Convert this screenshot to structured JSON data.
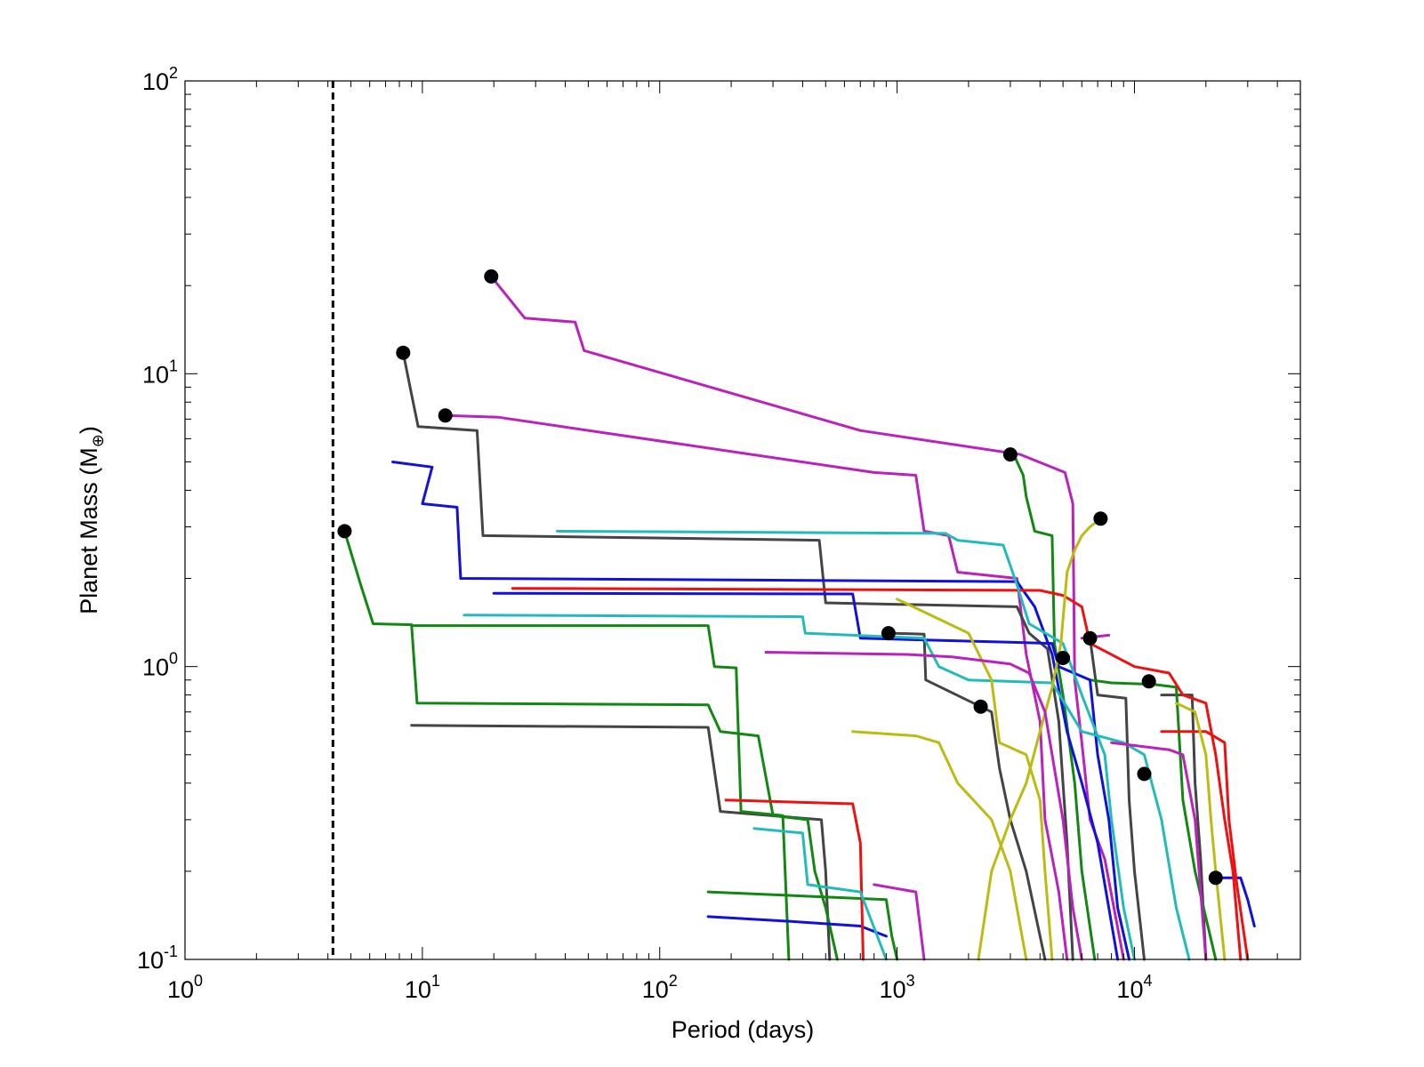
{
  "chart_data": {
    "type": "line",
    "xlabel": "Period (days)",
    "ylabel_main": "Planet Mass (M",
    "ylabel_sub": "⊕",
    "ylabel_close": ")",
    "xscale": "log",
    "yscale": "log",
    "xlim": [
      1,
      50000
    ],
    "ylim": [
      0.1,
      100
    ],
    "x_tick_labels": [
      {
        "value": 1,
        "base": "10",
        "exp": "0"
      },
      {
        "value": 10,
        "base": "10",
        "exp": "1"
      },
      {
        "value": 100,
        "base": "10",
        "exp": "2"
      },
      {
        "value": 1000,
        "base": "10",
        "exp": "3"
      },
      {
        "value": 10000,
        "base": "10",
        "exp": "4"
      }
    ],
    "y_tick_labels": [
      {
        "value": 0.1,
        "base": "10",
        "exp": "-1"
      },
      {
        "value": 1,
        "base": "10",
        "exp": "0"
      },
      {
        "value": 10,
        "base": "10",
        "exp": "1"
      },
      {
        "value": 100,
        "base": "10",
        "exp": "2"
      }
    ],
    "grid": false,
    "reference_line": {
      "x": 4.2,
      "style": "dashed",
      "color": "#000000"
    },
    "marker_color": "#000000",
    "series": [
      {
        "name": "magenta-1",
        "color": "#bb22bb",
        "points": [
          [
            19.5,
            21.5
          ],
          [
            27,
            15.5
          ],
          [
            44,
            15
          ],
          [
            48,
            12
          ],
          [
            700,
            6.4
          ],
          [
            3300,
            5.3
          ],
          [
            5100,
            4.6
          ],
          [
            5500,
            3.6
          ],
          [
            5600,
            0.9
          ],
          [
            6000,
            0.55
          ],
          [
            6500,
            0.3
          ],
          [
            7500,
            0.22
          ],
          [
            9000,
            0.1
          ]
        ]
      },
      {
        "name": "magenta-2",
        "color": "#bb22bb",
        "points": [
          [
            12.5,
            7.2
          ],
          [
            21,
            7.1
          ],
          [
            800,
            4.6
          ],
          [
            1200,
            4.5
          ],
          [
            1300,
            2.9
          ],
          [
            1650,
            2.8
          ],
          [
            1800,
            2.1
          ],
          [
            3200,
            2.0
          ],
          [
            3500,
            1.1
          ],
          [
            4000,
            0.65
          ],
          [
            4200,
            0.3
          ],
          [
            4800,
            0.17
          ],
          [
            5200,
            0.1
          ]
        ]
      },
      {
        "name": "darkgray-1",
        "color": "#444444",
        "points": [
          [
            8.3,
            11.8
          ],
          [
            9,
            8.5
          ],
          [
            9.6,
            6.6
          ],
          [
            17,
            6.4
          ],
          [
            18,
            2.8
          ],
          [
            470,
            2.7
          ],
          [
            500,
            1.65
          ],
          [
            3200,
            1.6
          ],
          [
            3600,
            1.3
          ],
          [
            4300,
            1.15
          ],
          [
            4800,
            0.65
          ],
          [
            5000,
            0.4
          ],
          [
            5200,
            0.25
          ],
          [
            5500,
            0.1
          ]
        ]
      },
      {
        "name": "darkgray-2",
        "color": "#444444",
        "points": [
          [
            9,
            0.63
          ],
          [
            160,
            0.62
          ],
          [
            180,
            0.32
          ],
          [
            480,
            0.3
          ],
          [
            500,
            0.2
          ],
          [
            520,
            0.1
          ]
        ]
      },
      {
        "name": "darkgray-3",
        "color": "#444444",
        "points": [
          [
            930,
            1.3
          ],
          [
            1300,
            1.29
          ],
          [
            1320,
            0.9
          ],
          [
            2500,
            0.7
          ],
          [
            2700,
            0.45
          ],
          [
            3000,
            0.3
          ],
          [
            3500,
            0.2
          ],
          [
            4200,
            0.1
          ]
        ]
      },
      {
        "name": "darkgray-4",
        "color": "#444444",
        "points": [
          [
            6500,
            1.25
          ],
          [
            7000,
            0.8
          ],
          [
            9200,
            0.78
          ],
          [
            9500,
            0.35
          ],
          [
            10000,
            0.2
          ],
          [
            11000,
            0.1
          ]
        ]
      },
      {
        "name": "darkgray-5",
        "color": "#444444",
        "points": [
          [
            13000,
            0.8
          ],
          [
            17500,
            0.8
          ],
          [
            18000,
            0.4
          ],
          [
            19000,
            0.22
          ],
          [
            20000,
            0.1
          ]
        ]
      },
      {
        "name": "green-1",
        "color": "#118811",
        "points": [
          [
            4.7,
            2.9
          ],
          [
            5.5,
            1.9
          ],
          [
            6.2,
            1.4
          ],
          [
            9,
            1.39
          ],
          [
            9.5,
            0.75
          ],
          [
            160,
            0.74
          ],
          [
            180,
            0.6
          ],
          [
            260,
            0.58
          ],
          [
            300,
            0.31
          ],
          [
            420,
            0.3
          ],
          [
            450,
            0.2
          ],
          [
            500,
            0.15
          ],
          [
            560,
            0.1
          ]
        ]
      },
      {
        "name": "green-2",
        "color": "#118811",
        "points": [
          [
            9.2,
            1.38
          ],
          [
            160,
            1.38
          ],
          [
            170,
            1.0
          ],
          [
            210,
            0.99
          ],
          [
            220,
            0.32
          ],
          [
            330,
            0.31
          ],
          [
            350,
            0.1
          ]
        ]
      },
      {
        "name": "green-3",
        "color": "#118811",
        "points": [
          [
            3100,
            5.3
          ],
          [
            3400,
            4.5
          ],
          [
            3500,
            3.8
          ],
          [
            3800,
            2.9
          ],
          [
            4500,
            2.8
          ],
          [
            4600,
            1.2
          ],
          [
            5000,
            0.8
          ],
          [
            5600,
            0.4
          ],
          [
            6000,
            0.2
          ],
          [
            6800,
            0.1
          ]
        ]
      },
      {
        "name": "green-4",
        "color": "#118811",
        "points": [
          [
            6500,
            0.9
          ],
          [
            8000,
            0.88
          ],
          [
            12000,
            0.87
          ],
          [
            15000,
            0.85
          ],
          [
            16000,
            0.35
          ],
          [
            18000,
            0.2
          ],
          [
            22000,
            0.1
          ]
        ]
      },
      {
        "name": "green-5",
        "color": "#118811",
        "points": [
          [
            160,
            0.17
          ],
          [
            900,
            0.16
          ],
          [
            950,
            0.12
          ],
          [
            1000,
            0.1
          ]
        ]
      },
      {
        "name": "blue-1",
        "color": "#1111dd",
        "points": [
          [
            7.5,
            5.0
          ],
          [
            11,
            4.8
          ],
          [
            10,
            3.6
          ],
          [
            14,
            3.5
          ],
          [
            14.5,
            2.0
          ],
          [
            3200,
            1.95
          ],
          [
            3800,
            1.6
          ],
          [
            4500,
            1.1
          ],
          [
            5200,
            0.6
          ],
          [
            6000,
            0.4
          ],
          [
            7000,
            0.25
          ],
          [
            8500,
            0.1
          ]
        ]
      },
      {
        "name": "blue-2",
        "color": "#1111dd",
        "points": [
          [
            20,
            1.78
          ],
          [
            650,
            1.77
          ],
          [
            700,
            1.25
          ],
          [
            4500,
            1.2
          ],
          [
            4800,
            1.0
          ],
          [
            6500,
            0.9
          ],
          [
            7000,
            0.5
          ],
          [
            7800,
            0.3
          ],
          [
            8500,
            0.15
          ],
          [
            9500,
            0.1
          ]
        ]
      },
      {
        "name": "blue-3",
        "color": "#1111dd",
        "points": [
          [
            160,
            0.14
          ],
          [
            350,
            0.135
          ],
          [
            700,
            0.13
          ],
          [
            900,
            0.12
          ]
        ]
      },
      {
        "name": "blue-4",
        "color": "#1111dd",
        "points": [
          [
            22000,
            0.19
          ],
          [
            28000,
            0.19
          ],
          [
            30000,
            0.16
          ],
          [
            32000,
            0.13
          ]
        ]
      },
      {
        "name": "red-1",
        "color": "#ee1111",
        "points": [
          [
            24,
            1.85
          ],
          [
            4000,
            1.82
          ],
          [
            5000,
            1.75
          ],
          [
            6000,
            1.6
          ],
          [
            6500,
            1.2
          ],
          [
            10000,
            1.0
          ],
          [
            14000,
            0.95
          ],
          [
            16000,
            0.8
          ],
          [
            20000,
            0.75
          ],
          [
            22000,
            0.5
          ],
          [
            24000,
            0.3
          ],
          [
            26000,
            0.2
          ],
          [
            28000,
            0.1
          ]
        ]
      },
      {
        "name": "red-2",
        "color": "#ee1111",
        "points": [
          [
            190,
            0.35
          ],
          [
            650,
            0.34
          ],
          [
            700,
            0.25
          ],
          [
            720,
            0.1
          ]
        ]
      },
      {
        "name": "red-3",
        "color": "#ee1111",
        "points": [
          [
            13000,
            0.6
          ],
          [
            20000,
            0.6
          ],
          [
            24000,
            0.55
          ],
          [
            25000,
            0.3
          ],
          [
            27000,
            0.18
          ],
          [
            30000,
            0.1
          ]
        ]
      },
      {
        "name": "cyan-1",
        "color": "#22bbbb",
        "points": [
          [
            37,
            2.9
          ],
          [
            1600,
            2.85
          ],
          [
            1800,
            2.7
          ],
          [
            2800,
            2.6
          ],
          [
            3200,
            1.9
          ],
          [
            3600,
            1.4
          ],
          [
            5000,
            1.2
          ],
          [
            6000,
            0.8
          ],
          [
            7500,
            0.5
          ],
          [
            8000,
            0.3
          ],
          [
            9000,
            0.15
          ],
          [
            10000,
            0.1
          ]
        ]
      },
      {
        "name": "cyan-2",
        "color": "#22bbbb",
        "points": [
          [
            15,
            1.5
          ],
          [
            400,
            1.48
          ],
          [
            410,
            1.3
          ],
          [
            1300,
            1.25
          ],
          [
            1500,
            1.0
          ],
          [
            2000,
            0.9
          ],
          [
            4500,
            0.88
          ],
          [
            6000,
            0.6
          ],
          [
            9000,
            0.55
          ],
          [
            11000,
            0.5
          ],
          [
            13000,
            0.3
          ],
          [
            15000,
            0.15
          ],
          [
            17000,
            0.1
          ]
        ]
      },
      {
        "name": "cyan-3",
        "color": "#22bbbb",
        "points": [
          [
            250,
            0.28
          ],
          [
            400,
            0.27
          ],
          [
            420,
            0.18
          ],
          [
            700,
            0.17
          ],
          [
            900,
            0.1
          ]
        ]
      },
      {
        "name": "yellow-1",
        "color": "#bbbb11",
        "points": [
          [
            7200,
            3.2
          ],
          [
            6500,
            3.0
          ],
          [
            6000,
            2.8
          ],
          [
            5600,
            2.5
          ],
          [
            5200,
            2.1
          ],
          [
            4900,
            1.2
          ],
          [
            4500,
            0.85
          ],
          [
            4000,
            0.6
          ],
          [
            3500,
            0.4
          ],
          [
            3000,
            0.3
          ],
          [
            2500,
            0.2
          ],
          [
            2200,
            0.1
          ]
        ]
      },
      {
        "name": "yellow-2",
        "color": "#bbbb11",
        "points": [
          [
            1000,
            1.7
          ],
          [
            2000,
            1.3
          ],
          [
            2500,
            0.9
          ],
          [
            2700,
            0.55
          ],
          [
            3500,
            0.5
          ],
          [
            4000,
            0.35
          ],
          [
            4200,
            0.2
          ],
          [
            4500,
            0.1
          ]
        ]
      },
      {
        "name": "yellow-3",
        "color": "#bbbb11",
        "points": [
          [
            650,
            0.6
          ],
          [
            1200,
            0.58
          ],
          [
            1500,
            0.55
          ],
          [
            1800,
            0.4
          ],
          [
            2500,
            0.3
          ],
          [
            3000,
            0.2
          ],
          [
            3500,
            0.1
          ]
        ]
      },
      {
        "name": "yellow-4",
        "color": "#bbbb11",
        "points": [
          [
            15000,
            0.75
          ],
          [
            18000,
            0.7
          ],
          [
            20000,
            0.5
          ],
          [
            21000,
            0.3
          ],
          [
            22000,
            0.2
          ],
          [
            24000,
            0.1
          ]
        ]
      },
      {
        "name": "magenta-3",
        "color": "#bb22bb",
        "points": [
          [
            280,
            1.12
          ],
          [
            1100,
            1.1
          ],
          [
            1700,
            1.08
          ],
          [
            3000,
            1.02
          ],
          [
            3600,
            0.95
          ],
          [
            4200,
            0.7
          ],
          [
            4500,
            0.5
          ],
          [
            5000,
            0.3
          ],
          [
            5500,
            0.15
          ],
          [
            6000,
            0.1
          ]
        ]
      },
      {
        "name": "magenta-4",
        "color": "#bb22bb",
        "points": [
          [
            6000,
            1.25
          ],
          [
            7800,
            1.28
          ]
        ]
      },
      {
        "name": "magenta-5",
        "color": "#bb22bb",
        "points": [
          [
            8000,
            0.55
          ],
          [
            14000,
            0.52
          ],
          [
            16000,
            0.5
          ],
          [
            18000,
            0.3
          ],
          [
            20000,
            0.1
          ]
        ]
      },
      {
        "name": "magenta-6",
        "color": "#bb22bb",
        "points": [
          [
            800,
            0.18
          ],
          [
            1200,
            0.17
          ],
          [
            1300,
            0.1
          ]
        ]
      }
    ],
    "markers": [
      [
        19.5,
        21.5
      ],
      [
        8.3,
        11.8
      ],
      [
        12.5,
        7.2
      ],
      [
        4.7,
        2.9
      ],
      [
        3000,
        5.3
      ],
      [
        7200,
        3.2
      ],
      [
        920,
        1.3
      ],
      [
        6500,
        1.25
      ],
      [
        5000,
        1.07
      ],
      [
        2250,
        0.73
      ],
      [
        11500,
        0.89
      ],
      [
        11000,
        0.43
      ],
      [
        22000,
        0.19
      ]
    ]
  }
}
